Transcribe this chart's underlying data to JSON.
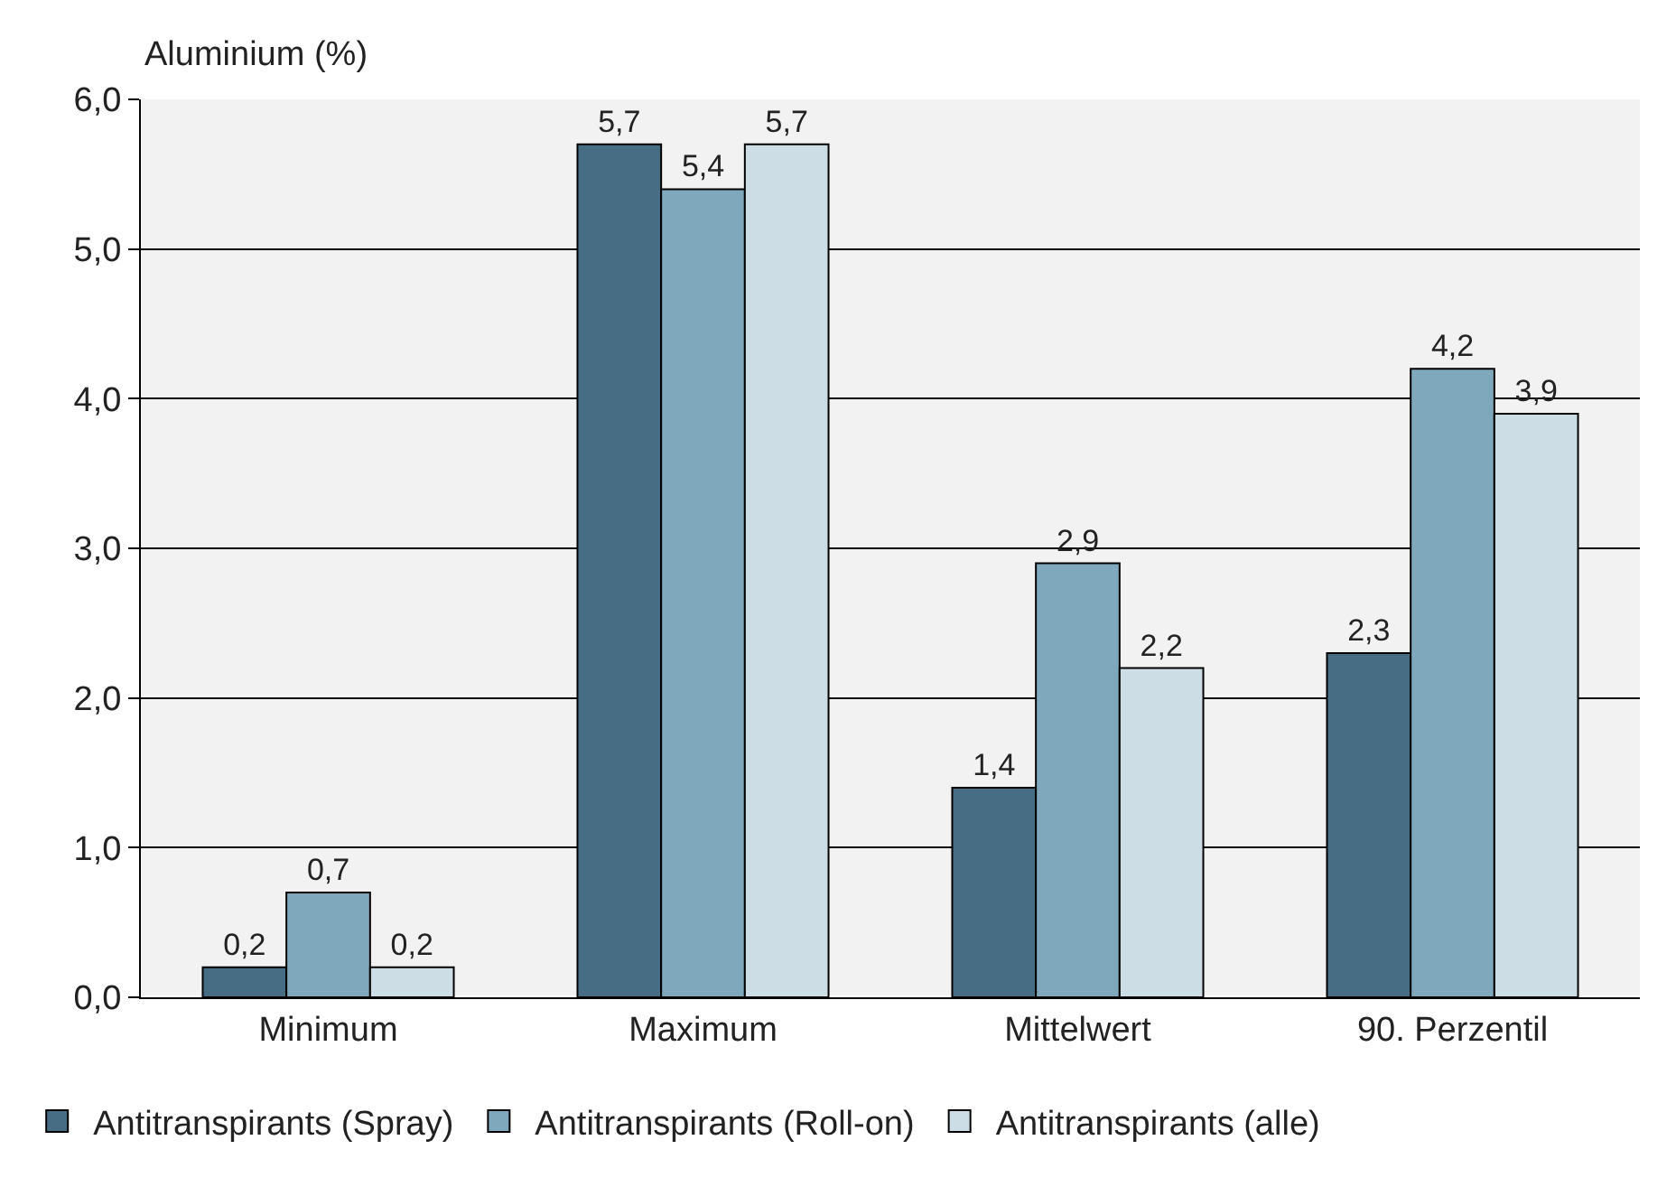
{
  "chart_data": {
    "type": "bar",
    "ylabel": "Aluminium (%)",
    "categories": [
      "Minimum",
      "Maximum",
      "Mittelwert",
      "90. Perzentil"
    ],
    "series": [
      {
        "name": "Antitranspirants (Spray)",
        "color": "#466d84",
        "values": [
          0.2,
          5.7,
          1.4,
          2.3
        ],
        "value_labels": [
          "0,2",
          "5,7",
          "1,4",
          "2,3"
        ]
      },
      {
        "name": "Antitranspirants (Roll-on)",
        "color": "#80a8bd",
        "values": [
          0.7,
          5.4,
          2.9,
          4.2
        ],
        "value_labels": [
          "0,7",
          "5,4",
          "2,9",
          "4,2"
        ]
      },
      {
        "name": "Antitranspirants (alle)",
        "color": "#cddde5",
        "values": [
          0.2,
          5.7,
          2.2,
          3.9
        ],
        "value_labels": [
          "0,2",
          "5,7",
          "2,2",
          "3,9"
        ]
      }
    ],
    "ylim": [
      0,
      6
    ],
    "yticks": [
      {
        "value": 0,
        "label": "0,0"
      },
      {
        "value": 1,
        "label": "1,0"
      },
      {
        "value": 2,
        "label": "2,0"
      },
      {
        "value": 3,
        "label": "3,0"
      },
      {
        "value": 4,
        "label": "4,0"
      },
      {
        "value": 5,
        "label": "5,0"
      },
      {
        "value": 6,
        "label": "6,0"
      }
    ],
    "grid": "y",
    "legend": "bottom"
  }
}
